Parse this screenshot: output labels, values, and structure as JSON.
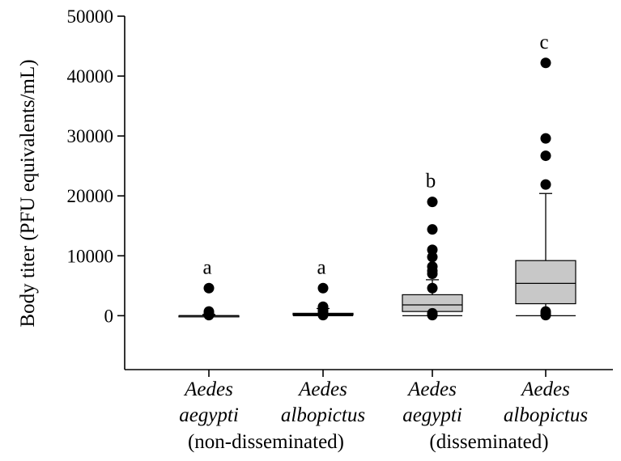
{
  "chart_data": {
    "type": "box",
    "ylabel": "Body titer (PFU equivalents/mL)",
    "ylim": [
      -9000,
      50000
    ],
    "yticks": [
      0,
      10000,
      20000,
      30000,
      40000,
      50000
    ],
    "yticklabels": [
      "0",
      "10000",
      "20000",
      "30000",
      "40000",
      "50000"
    ],
    "categories": [
      {
        "species": "Aedes",
        "subspecies": "aegypti"
      },
      {
        "species": "Aedes",
        "subspecies": "albopictus"
      },
      {
        "species": "Aedes",
        "subspecies": "aegypti"
      },
      {
        "species": "Aedes",
        "subspecies": "albopictus"
      }
    ],
    "groups": [
      {
        "label": "(non-disseminated)",
        "categories": [
          0,
          1
        ]
      },
      {
        "label": "(disseminated)",
        "categories": [
          2,
          3
        ]
      }
    ],
    "boxes": [
      {
        "whisker_low": 0,
        "q1": 0,
        "median": 0,
        "q3": 0,
        "whisker_high": 200,
        "outliers": [
          4600,
          700,
          400,
          100
        ],
        "significance": "a"
      },
      {
        "whisker_low": 0,
        "q1": 100,
        "median": 250,
        "q3": 400,
        "whisker_high": 1200,
        "outliers": [
          4600,
          1500,
          900,
          600,
          100
        ],
        "significance": "a"
      },
      {
        "whisker_low": 0,
        "q1": 700,
        "median": 1800,
        "q3": 3500,
        "whisker_high": 6000,
        "outliers": [
          19000,
          14400,
          11000,
          9800,
          8200,
          7500,
          7000,
          4600,
          400,
          100
        ],
        "significance": "b"
      },
      {
        "whisker_low": 0,
        "q1": 2000,
        "median": 5400,
        "q3": 9200,
        "whisker_high": 20400,
        "outliers": [
          42200,
          29600,
          26700,
          21900,
          700,
          400,
          100
        ],
        "significance": "c"
      }
    ]
  }
}
